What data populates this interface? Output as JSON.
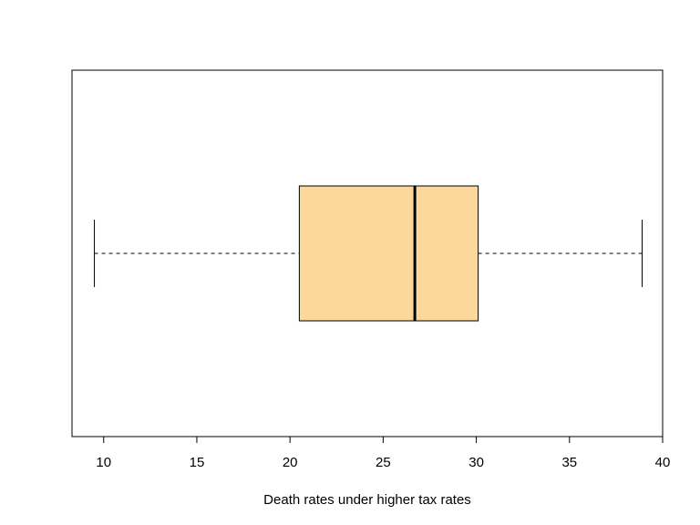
{
  "chart_data": {
    "type": "boxplot",
    "orientation": "horizontal",
    "title": "",
    "xlabel": "Death rates under higher tax rates",
    "ylabel": "",
    "xlim": [
      8.3,
      40.0
    ],
    "x_ticks": [
      10,
      15,
      20,
      25,
      30,
      35,
      40
    ],
    "grid": false,
    "series": [
      {
        "whisker_low": 9.5,
        "q1": 20.5,
        "median": 26.7,
        "q3": 30.1,
        "whisker_high": 38.9,
        "fill_color": "#FDD89B"
      }
    ]
  }
}
